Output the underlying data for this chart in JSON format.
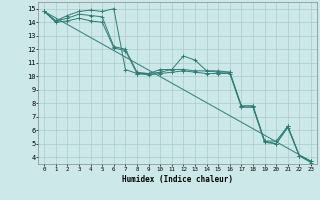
{
  "xlabel": "Humidex (Indice chaleur)",
  "bg_color": "#cce8e8",
  "grid_color": "#aacccc",
  "line_color": "#2e7d74",
  "xlim": [
    -0.5,
    23.5
  ],
  "ylim": [
    3.5,
    15.5
  ],
  "xticks": [
    0,
    1,
    2,
    3,
    4,
    5,
    6,
    7,
    8,
    9,
    10,
    11,
    12,
    13,
    14,
    15,
    16,
    17,
    18,
    19,
    20,
    21,
    22,
    23
  ],
  "yticks": [
    4,
    5,
    6,
    7,
    8,
    9,
    10,
    11,
    12,
    13,
    14,
    15
  ],
  "series_straight": {
    "x": [
      0,
      23
    ],
    "y": [
      14.8,
      3.7
    ]
  },
  "series_s1": {
    "x": [
      0,
      1,
      2,
      3,
      4,
      5,
      6,
      7,
      8,
      9,
      10,
      11,
      12,
      13,
      14,
      15,
      16,
      17,
      18,
      19,
      20,
      21,
      22,
      23
    ],
    "y": [
      14.8,
      14.1,
      14.5,
      14.8,
      14.9,
      14.8,
      15.0,
      10.5,
      10.2,
      10.2,
      10.5,
      10.5,
      11.5,
      11.2,
      10.4,
      10.4,
      10.3,
      7.8,
      7.8,
      5.2,
      5.2,
      6.3,
      4.1,
      3.7
    ]
  },
  "series_s2": {
    "x": [
      0,
      1,
      2,
      3,
      4,
      5,
      6,
      7,
      8,
      9,
      10,
      11,
      12,
      13,
      14,
      15,
      16,
      17,
      18,
      19,
      20,
      21,
      22,
      23
    ],
    "y": [
      14.8,
      14.1,
      14.3,
      14.6,
      14.5,
      14.4,
      12.2,
      12.0,
      10.3,
      10.2,
      10.3,
      10.5,
      10.5,
      10.4,
      10.4,
      10.3,
      10.3,
      7.8,
      7.8,
      5.2,
      5.0,
      6.3,
      4.1,
      3.7
    ]
  },
  "series_s3": {
    "x": [
      0,
      1,
      2,
      3,
      4,
      5,
      6,
      7,
      8,
      9,
      10,
      11,
      12,
      13,
      14,
      15,
      16,
      17,
      18,
      19,
      20,
      21,
      22,
      23
    ],
    "y": [
      14.8,
      14.0,
      14.1,
      14.3,
      14.1,
      14.0,
      12.1,
      11.9,
      10.2,
      10.1,
      10.2,
      10.3,
      10.4,
      10.3,
      10.2,
      10.2,
      10.2,
      7.7,
      7.7,
      5.1,
      5.0,
      6.2,
      4.1,
      3.6
    ]
  }
}
